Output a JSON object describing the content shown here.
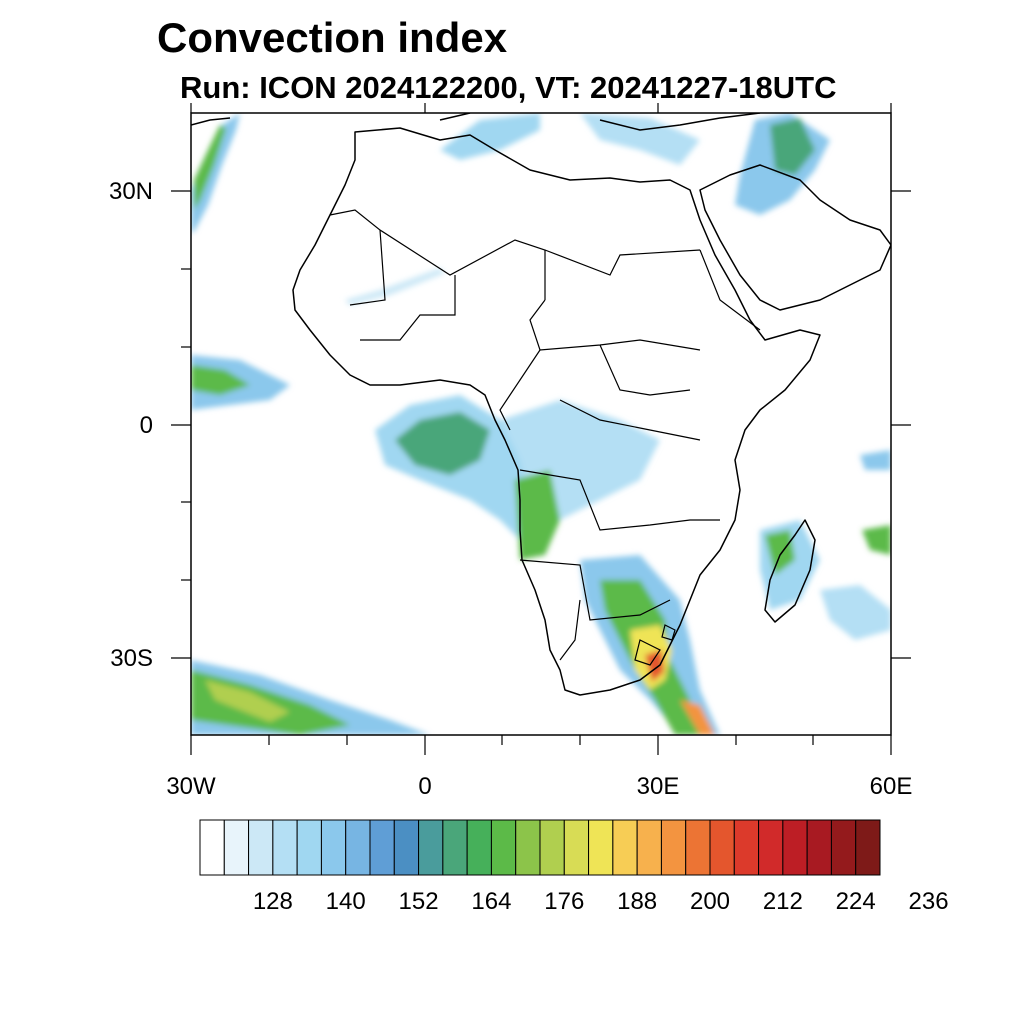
{
  "title": "Convection index",
  "subtitle": "Run: ICON 2024122200,  VT: 20241227-18UTC",
  "axes": {
    "lat_labels": [
      "30N",
      "0",
      "30S"
    ],
    "lon_labels": [
      "30W",
      "0",
      "30E",
      "60E"
    ]
  },
  "colorbar": {
    "labels": [
      "128",
      "140",
      "152",
      "164",
      "176",
      "188",
      "200",
      "212",
      "224",
      "236"
    ],
    "colors": [
      "#ffffff",
      "#e8f4fb",
      "#cce8f6",
      "#b4dff4",
      "#a0d7f1",
      "#8bc8ec",
      "#77b5e3",
      "#5f9ed6",
      "#4b8fc3",
      "#4a9c9c",
      "#4aa67a",
      "#46b05a",
      "#5cba48",
      "#8cc44a",
      "#b0cf4f",
      "#d8dc55",
      "#efe456",
      "#f7cd55",
      "#f7b14d",
      "#f39440",
      "#ec7434",
      "#e4562d",
      "#dc3a2b",
      "#d12a2a",
      "#bd1e25",
      "#a81a22",
      "#941a1c",
      "#7e1a18"
    ]
  },
  "map": {
    "lon_range": [
      -30,
      60
    ],
    "lat_range": [
      -40,
      40
    ],
    "projection": "cylindrical equidistant",
    "field": "convection index"
  }
}
